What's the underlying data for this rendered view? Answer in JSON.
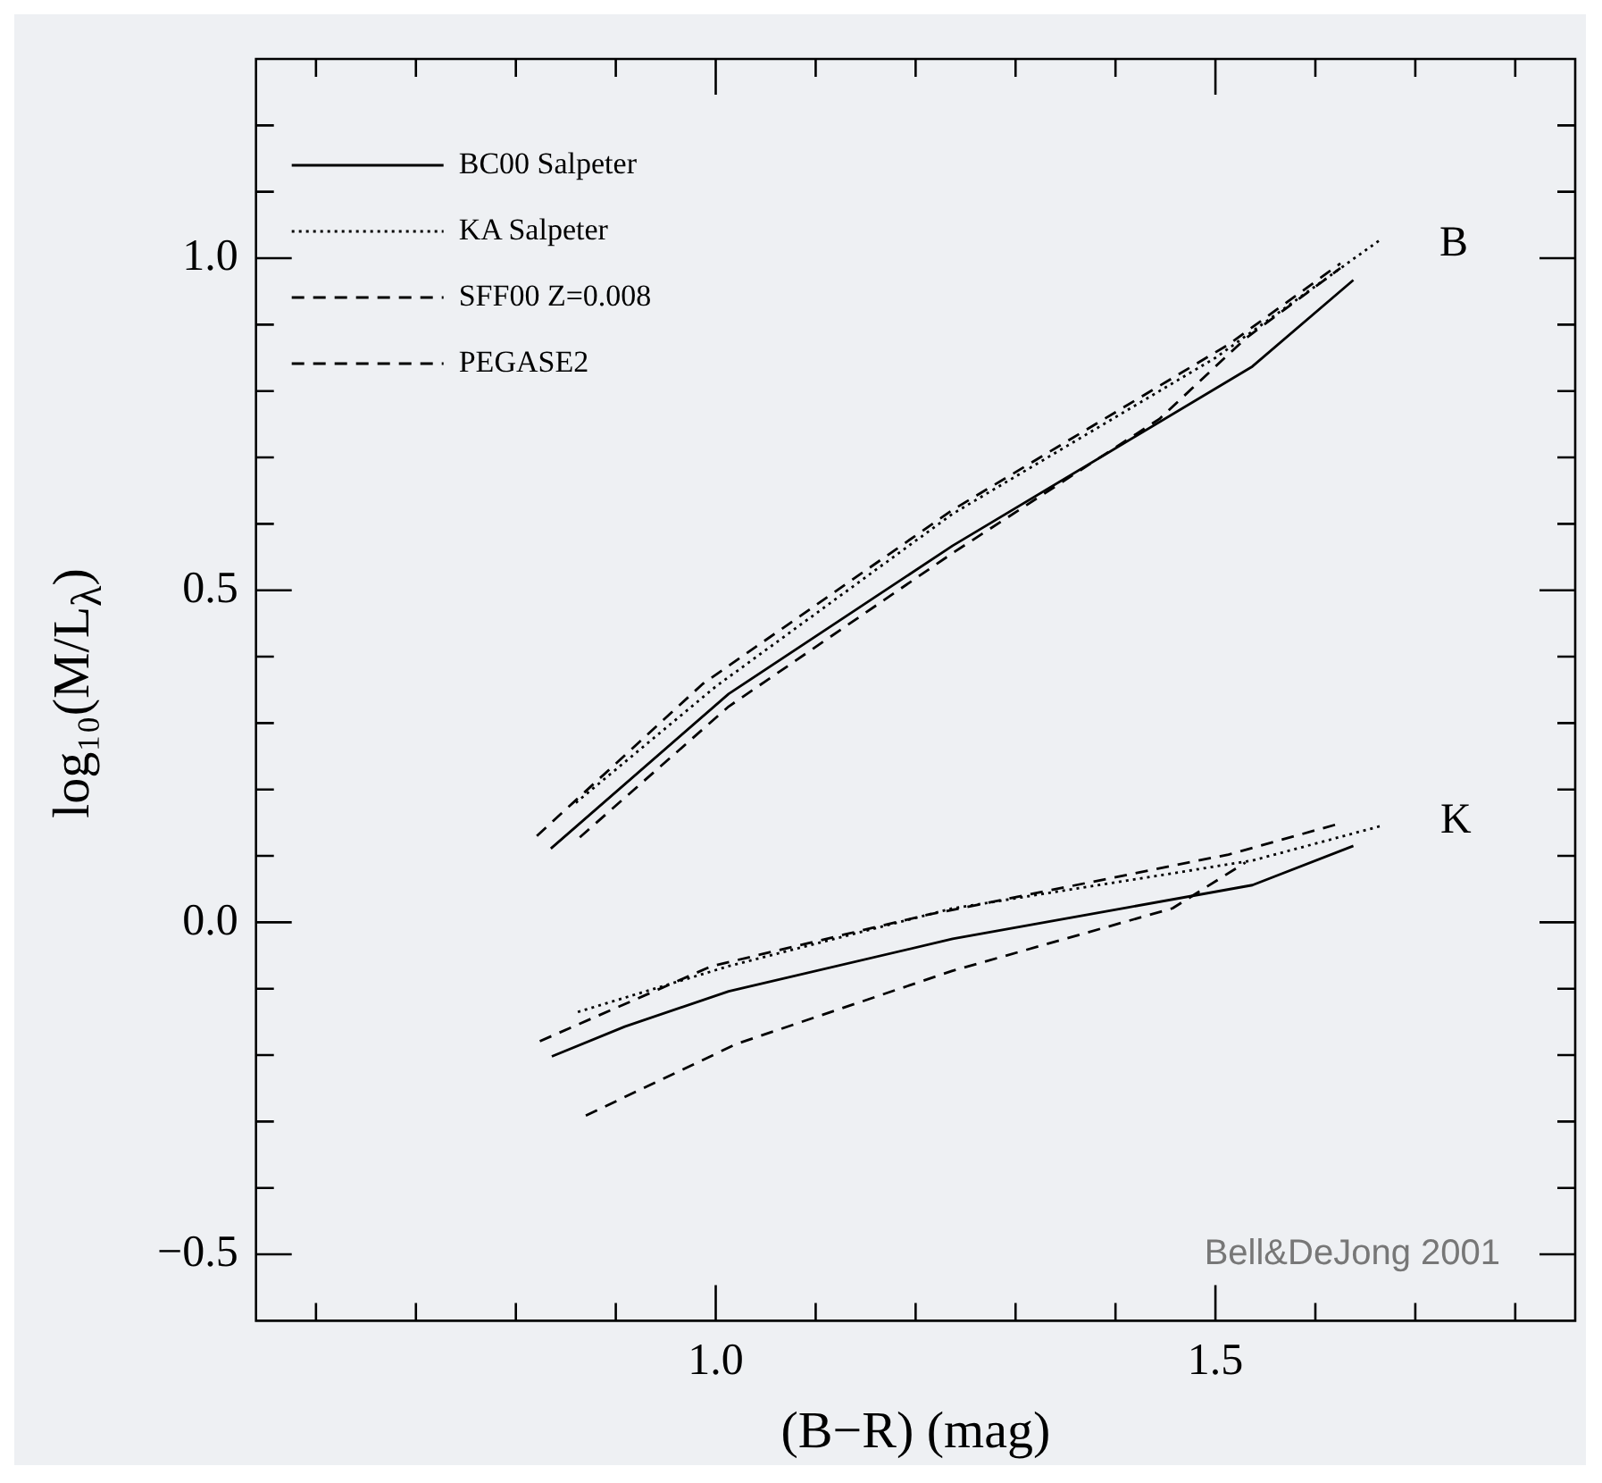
{
  "chart_data": {
    "type": "line",
    "xlabel": "(B−R) (mag)",
    "ylabel": "log₁₀(M/L$_{λ}$)",
    "xlim": [
      0.54,
      1.86
    ],
    "ylim": [
      -0.6,
      1.3
    ],
    "xticks": [
      {
        "value": 0.6,
        "label": null
      },
      {
        "value": 0.7,
        "label": null
      },
      {
        "value": 0.8,
        "label": null
      },
      {
        "value": 0.9,
        "label": null
      },
      {
        "value": 1,
        "label": "1.0"
      },
      {
        "value": 1.1,
        "label": null
      },
      {
        "value": 1.2,
        "label": null
      },
      {
        "value": 1.3,
        "label": null
      },
      {
        "value": 1.4,
        "label": null
      },
      1.5,
      {
        "value": 1.6,
        "label": null
      },
      {
        "value": 1.7,
        "label": null
      },
      {
        "value": 1.8,
        "label": null
      }
    ],
    "yticks": [
      {
        "value": -0.5,
        "label": "−0.5"
      },
      {
        "value": -0.4,
        "label": null
      },
      {
        "value": -0.3,
        "label": null
      },
      {
        "value": -0.2,
        "label": null
      },
      {
        "value": -0.1,
        "label": null
      },
      {
        "value": 0,
        "label": "0.0"
      },
      {
        "value": 0.1,
        "label": null
      },
      {
        "value": 0.2,
        "label": null
      },
      {
        "value": 0.3,
        "label": null
      },
      {
        "value": 0.4,
        "label": null
      },
      0.5,
      {
        "value": 0.6,
        "label": null
      },
      {
        "value": 0.7,
        "label": null
      },
      {
        "value": 0.8,
        "label": null
      },
      {
        "value": 0.9,
        "label": null
      },
      {
        "value": 1,
        "label": "1.0"
      },
      {
        "value": 1.1,
        "label": null
      },
      {
        "value": 1.2,
        "label": null
      }
    ],
    "grid": false,
    "legend": "top left",
    "marker": "none",
    "series": [
      {
        "name": "BC00 Salpeter",
        "color": "#000000",
        "line_style": "solid",
        "x": [
          0.835,
          1.013,
          1.237,
          1.537,
          1.638
        ],
        "values": [
          0.111,
          0.344,
          0.567,
          0.837,
          0.967
        ]
      },
      {
        "name": "KA Salpeter",
        "color": "#000000",
        "line_style": "dotted",
        "x": [
          0.86,
          1.0,
          1.237,
          1.5,
          1.667
        ],
        "values": [
          0.18,
          0.355,
          0.615,
          0.85,
          1.03
        ]
      },
      {
        "name": "SFF00 Z=0.008",
        "color": "#000000",
        "line_style": "dashed",
        "x": [
          0.864,
          1.013,
          1.237,
          1.444,
          1.53,
          1.625
        ],
        "values": [
          0.128,
          0.325,
          0.556,
          0.758,
          0.879,
          0.985
        ]
      },
      {
        "name": "PEGASE2",
        "color": "#000000",
        "line_style": "dashed",
        "x": [
          0.821,
          0.987,
          1.237,
          1.513,
          1.625
        ],
        "values": [
          0.13,
          0.359,
          0.621,
          0.87,
          0.992
        ]
      },
      {
        "color": "#000000",
        "line_style": "solid",
        "x": [
          0.836,
          0.909,
          1.013,
          1.237,
          1.537,
          1.638
        ],
        "values": [
          -0.202,
          -0.157,
          -0.104,
          -0.025,
          0.056,
          0.115
        ]
      },
      {
        "color": "#000000",
        "line_style": "dotted",
        "x": [
          0.862,
          1.013,
          1.237,
          1.537,
          1.668
        ],
        "values": [
          -0.135,
          -0.066,
          0.021,
          0.093,
          0.146
        ]
      },
      {
        "color": "#000000",
        "line_style": "dashed",
        "x": [
          0.87,
          1.021,
          1.237,
          1.457,
          1.53
        ],
        "values": [
          -0.291,
          -0.183,
          -0.073,
          0.021,
          0.09
        ]
      },
      {
        "color": "#000000",
        "line_style": "dashed",
        "x": [
          0.824,
          0.996,
          1.211,
          1.513,
          1.625
        ],
        "values": [
          -0.179,
          -0.066,
          0.011,
          0.102,
          0.149
        ]
      }
    ],
    "annotations": [
      "B",
      "K",
      "Bell&DeJong 2001"
    ]
  }
}
